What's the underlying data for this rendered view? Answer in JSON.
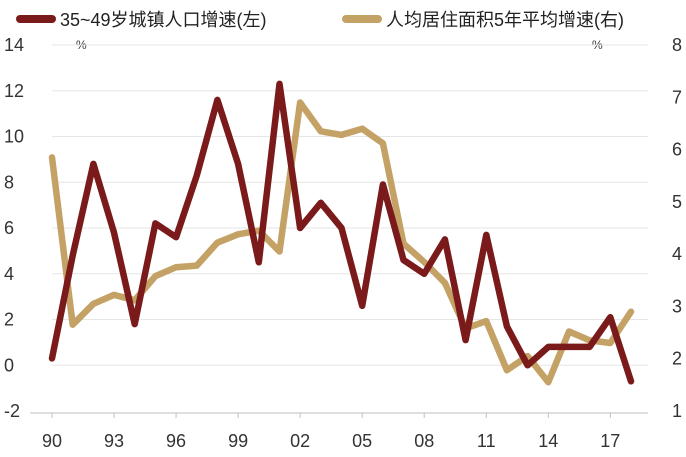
{
  "chart_data": {
    "type": "line",
    "x": [
      "90",
      "91",
      "92",
      "93",
      "94",
      "95",
      "96",
      "97",
      "98",
      "99",
      "00",
      "01",
      "02",
      "03",
      "04",
      "05",
      "06",
      "07",
      "08",
      "09",
      "10",
      "11",
      "12",
      "13",
      "14",
      "15",
      "16",
      "17",
      "18"
    ],
    "x_tick_labels": [
      "90",
      "93",
      "96",
      "99",
      "02",
      "05",
      "08",
      "11",
      "14",
      "17"
    ],
    "series": [
      {
        "name": "35~49岁城镇人口增速(左)",
        "axis": "left",
        "color": "#7B1A1A",
        "values": [
          0.3,
          4.8,
          8.8,
          5.8,
          1.8,
          6.2,
          5.6,
          8.3,
          11.6,
          8.8,
          4.5,
          12.3,
          6.0,
          7.1,
          6.0,
          2.6,
          7.9,
          4.6,
          4.0,
          5.5,
          1.1,
          5.7,
          1.7,
          0.0,
          0.8,
          0.8,
          0.8,
          2.1,
          -0.7
        ]
      },
      {
        "name": "人均居住面积5年平均增速(右)",
        "axis": "right",
        "color": "#C4A265",
        "values": [
          5.85,
          2.65,
          3.05,
          3.22,
          3.12,
          3.58,
          3.75,
          3.78,
          4.22,
          4.38,
          4.45,
          4.05,
          6.9,
          6.35,
          6.28,
          6.4,
          6.12,
          4.2,
          3.85,
          3.45,
          2.58,
          2.72,
          1.78,
          2.05,
          1.55,
          2.52,
          2.35,
          2.3,
          2.9
        ]
      }
    ],
    "left_axis": {
      "min": -2,
      "max": 14,
      "ticks": [
        "-2",
        "0",
        "2",
        "4",
        "6",
        "8",
        "10",
        "12",
        "14"
      ],
      "unit": "%"
    },
    "right_axis": {
      "min": 1,
      "max": 8,
      "ticks": [
        "1",
        "2",
        "3",
        "4",
        "5",
        "6",
        "7",
        "8"
      ],
      "unit": "%"
    },
    "grid": "horizontal",
    "legend_position": "top"
  }
}
